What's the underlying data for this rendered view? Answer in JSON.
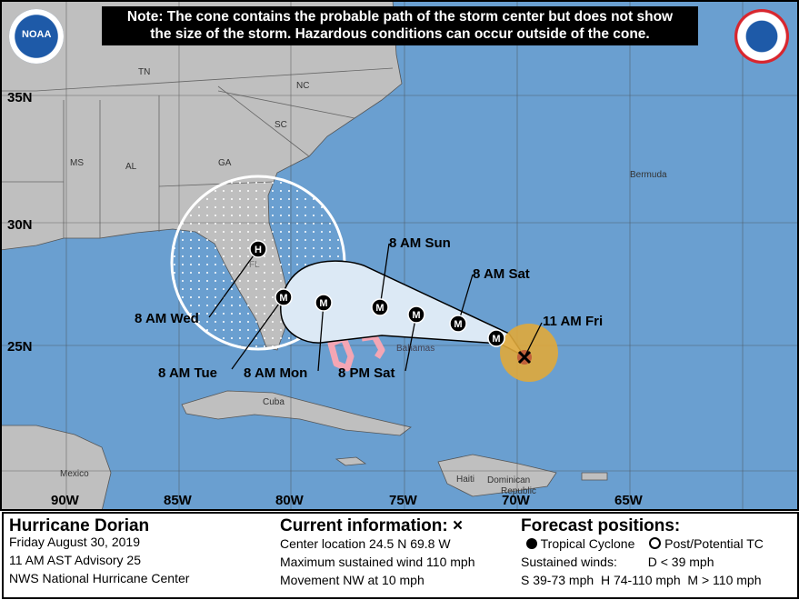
{
  "note": {
    "line1": "Note: The cone contains the probable path of the storm center but does not show",
    "line2": "the size of the storm. Hazardous conditions can occur outside of the cone."
  },
  "logos": {
    "left": "NOAA",
    "right": "National Weather Service"
  },
  "map": {
    "latitude_labels": [
      "35N",
      "30N",
      "25N"
    ],
    "longitude_labels": [
      "90W",
      "85W",
      "80W",
      "75W",
      "70W",
      "65W"
    ],
    "place_labels": {
      "tn": "TN",
      "nc": "NC",
      "sc": "SC",
      "ga": "GA",
      "al": "AL",
      "ms": "MS",
      "fl": "FL",
      "bermuda": "Bermuda",
      "bahamas": "Bahamas",
      "cuba": "Cuba",
      "mexico": "Mexico",
      "haiti": "Haiti",
      "dominican1": "Dominican",
      "dominican2": "Republic"
    },
    "forecast_points": [
      {
        "label": "11 AM Fri",
        "symbol": "X",
        "lat": 24.5,
        "lon": -69.8
      },
      {
        "label": "8 AM Sat",
        "symbol": "M"
      },
      {
        "label": "8 PM Sat",
        "symbol": "M"
      },
      {
        "label": "8 AM Sun",
        "symbol": "M"
      },
      {
        "label": "8 AM Mon",
        "symbol": "M"
      },
      {
        "label": "8 AM Tue",
        "symbol": "M"
      },
      {
        "label": "8 AM Wed",
        "symbol": "H"
      }
    ],
    "colors": {
      "ocean": "#6a9fd0",
      "land": "#bfbfbf",
      "cone": "#dce9f5",
      "hurricane_wind": "#e0a93a",
      "warning": "#f4a6b4"
    }
  },
  "legend": {
    "storm": {
      "name": "Hurricane Dorian",
      "date": "Friday August 30, 2019",
      "advisory": "11 AM AST Advisory 25",
      "source": "NWS National Hurricane Center"
    },
    "current": {
      "title": "Current information: ×",
      "center": "Center location 24.5 N 69.8 W",
      "wind": "Maximum sustained wind 110 mph",
      "movement": "Movement NW at 10 mph"
    },
    "forecast": {
      "title": "Forecast positions:",
      "tropical": "Tropical Cyclone",
      "post": "Post/Potential TC",
      "winds_label": "Sustained winds:",
      "d": "D < 39 mph",
      "s": "S 39-73 mph",
      "h": "H 74-110 mph",
      "m": "M > 110 mph"
    }
  }
}
